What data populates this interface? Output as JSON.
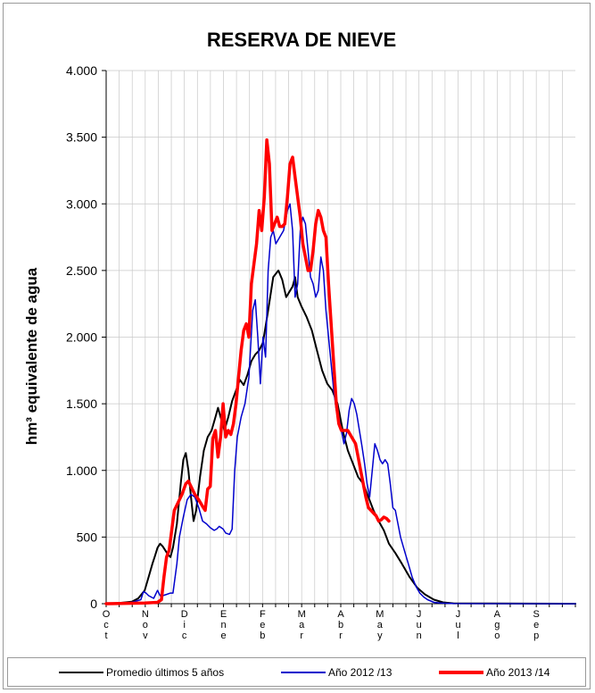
{
  "chart_data": {
    "type": "line",
    "title": "RESERVA DE NIEVE",
    "ylabel": "hm³ equivalente de agua",
    "xlabel": "",
    "ylim": [
      0,
      4000
    ],
    "xlim": [
      0,
      365
    ],
    "y_ticks": [
      0,
      500,
      1000,
      1500,
      2000,
      2500,
      3000,
      3500,
      4000
    ],
    "y_tick_labels": [
      "0",
      "500",
      "1.000",
      "1.500",
      "2.000",
      "2.500",
      "3.000",
      "3.500",
      "4.000"
    ],
    "month_labels": [
      "Oct",
      "Nov",
      "Dic",
      "Ene",
      "Feb",
      "Mar",
      "Abr",
      "May",
      "Jun",
      "Jul",
      "Ago",
      "Sep"
    ],
    "grid": true,
    "legend_position": "bottom",
    "series": [
      {
        "name": "Promedio últimos 5 años",
        "color": "#000000",
        "width": 2,
        "points": [
          [
            0,
            0
          ],
          [
            10,
            5
          ],
          [
            20,
            15
          ],
          [
            25,
            40
          ],
          [
            30,
            100
          ],
          [
            33,
            200
          ],
          [
            36,
            300
          ],
          [
            38,
            360
          ],
          [
            40,
            420
          ],
          [
            42,
            450
          ],
          [
            44,
            430
          ],
          [
            46,
            400
          ],
          [
            48,
            370
          ],
          [
            50,
            350
          ],
          [
            52,
            420
          ],
          [
            55,
            600
          ],
          [
            58,
            900
          ],
          [
            60,
            1080
          ],
          [
            62,
            1130
          ],
          [
            64,
            1000
          ],
          [
            66,
            800
          ],
          [
            68,
            620
          ],
          [
            70,
            700
          ],
          [
            73,
            950
          ],
          [
            76,
            1150
          ],
          [
            79,
            1250
          ],
          [
            82,
            1300
          ],
          [
            85,
            1400
          ],
          [
            87,
            1470
          ],
          [
            89,
            1400
          ],
          [
            92,
            1300
          ],
          [
            95,
            1400
          ],
          [
            98,
            1520
          ],
          [
            101,
            1600
          ],
          [
            104,
            1680
          ],
          [
            107,
            1640
          ],
          [
            110,
            1720
          ],
          [
            113,
            1820
          ],
          [
            116,
            1870
          ],
          [
            119,
            1900
          ],
          [
            122,
            1960
          ],
          [
            126,
            2200
          ],
          [
            130,
            2450
          ],
          [
            134,
            2500
          ],
          [
            137,
            2430
          ],
          [
            140,
            2300
          ],
          [
            145,
            2380
          ],
          [
            147,
            2450
          ],
          [
            149,
            2300
          ],
          [
            152,
            2230
          ],
          [
            156,
            2150
          ],
          [
            160,
            2050
          ],
          [
            164,
            1900
          ],
          [
            168,
            1750
          ],
          [
            172,
            1650
          ],
          [
            176,
            1600
          ],
          [
            180,
            1500
          ],
          [
            184,
            1300
          ],
          [
            188,
            1150
          ],
          [
            192,
            1050
          ],
          [
            196,
            950
          ],
          [
            200,
            900
          ],
          [
            204,
            800
          ],
          [
            208,
            700
          ],
          [
            212,
            620
          ],
          [
            216,
            550
          ],
          [
            220,
            450
          ],
          [
            225,
            380
          ],
          [
            230,
            300
          ],
          [
            236,
            200
          ],
          [
            242,
            120
          ],
          [
            248,
            70
          ],
          [
            255,
            30
          ],
          [
            262,
            10
          ],
          [
            270,
            3
          ],
          [
            365,
            0
          ]
        ]
      },
      {
        "name": "Año 2012 /13",
        "color": "#0000cc",
        "width": 1.5,
        "points": [
          [
            0,
            0
          ],
          [
            20,
            10
          ],
          [
            27,
            30
          ],
          [
            29,
            90
          ],
          [
            31,
            80
          ],
          [
            33,
            60
          ],
          [
            35,
            50
          ],
          [
            37,
            40
          ],
          [
            40,
            100
          ],
          [
            42,
            60
          ],
          [
            44,
            60
          ],
          [
            47,
            70
          ],
          [
            50,
            80
          ],
          [
            52,
            80
          ],
          [
            55,
            300
          ],
          [
            57,
            500
          ],
          [
            60,
            650
          ],
          [
            63,
            780
          ],
          [
            66,
            820
          ],
          [
            69,
            800
          ],
          [
            72,
            720
          ],
          [
            75,
            620
          ],
          [
            78,
            600
          ],
          [
            81,
            570
          ],
          [
            84,
            550
          ],
          [
            86,
            560
          ],
          [
            88,
            580
          ],
          [
            91,
            560
          ],
          [
            93,
            530
          ],
          [
            96,
            520
          ],
          [
            98,
            560
          ],
          [
            100,
            1000
          ],
          [
            102,
            1250
          ],
          [
            105,
            1400
          ],
          [
            108,
            1500
          ],
          [
            111,
            1700
          ],
          [
            114,
            2200
          ],
          [
            116,
            2280
          ],
          [
            118,
            2000
          ],
          [
            120,
            1650
          ],
          [
            122,
            2000
          ],
          [
            124,
            1850
          ],
          [
            126,
            2500
          ],
          [
            128,
            2750
          ],
          [
            130,
            2800
          ],
          [
            132,
            2700
          ],
          [
            135,
            2750
          ],
          [
            138,
            2800
          ],
          [
            141,
            2950
          ],
          [
            143,
            3000
          ],
          [
            145,
            2800
          ],
          [
            147,
            2300
          ],
          [
            149,
            2400
          ],
          [
            151,
            2800
          ],
          [
            153,
            2900
          ],
          [
            155,
            2850
          ],
          [
            157,
            2650
          ],
          [
            159,
            2450
          ],
          [
            161,
            2400
          ],
          [
            163,
            2300
          ],
          [
            165,
            2350
          ],
          [
            167,
            2600
          ],
          [
            169,
            2500
          ],
          [
            171,
            2200
          ],
          [
            173,
            2000
          ],
          [
            175,
            1800
          ],
          [
            177,
            1600
          ],
          [
            179,
            1450
          ],
          [
            181,
            1400
          ],
          [
            183,
            1300
          ],
          [
            185,
            1200
          ],
          [
            187,
            1280
          ],
          [
            189,
            1450
          ],
          [
            191,
            1540
          ],
          [
            193,
            1500
          ],
          [
            195,
            1420
          ],
          [
            197,
            1300
          ],
          [
            199,
            1180
          ],
          [
            201,
            1050
          ],
          [
            203,
            900
          ],
          [
            205,
            800
          ],
          [
            207,
            1000
          ],
          [
            209,
            1200
          ],
          [
            211,
            1150
          ],
          [
            213,
            1080
          ],
          [
            215,
            1050
          ],
          [
            217,
            1080
          ],
          [
            219,
            1050
          ],
          [
            221,
            900
          ],
          [
            223,
            720
          ],
          [
            225,
            700
          ],
          [
            227,
            600
          ],
          [
            229,
            500
          ],
          [
            232,
            400
          ],
          [
            235,
            300
          ],
          [
            238,
            200
          ],
          [
            241,
            130
          ],
          [
            244,
            80
          ],
          [
            247,
            50
          ],
          [
            250,
            30
          ],
          [
            255,
            10
          ],
          [
            260,
            5
          ],
          [
            270,
            2
          ],
          [
            365,
            0
          ]
        ]
      },
      {
        "name": "Año 2013 /14",
        "color": "#ff0000",
        "width": 3.5,
        "points": [
          [
            0,
            0
          ],
          [
            30,
            5
          ],
          [
            40,
            10
          ],
          [
            43,
            30
          ],
          [
            45,
            200
          ],
          [
            47,
            350
          ],
          [
            49,
            400
          ],
          [
            51,
            550
          ],
          [
            53,
            700
          ],
          [
            56,
            760
          ],
          [
            59,
            820
          ],
          [
            62,
            900
          ],
          [
            64,
            920
          ],
          [
            66,
            880
          ],
          [
            69,
            820
          ],
          [
            72,
            780
          ],
          [
            75,
            730
          ],
          [
            77,
            700
          ],
          [
            79,
            860
          ],
          [
            81,
            880
          ],
          [
            83,
            1240
          ],
          [
            85,
            1300
          ],
          [
            87,
            1100
          ],
          [
            89,
            1250
          ],
          [
            91,
            1500
          ],
          [
            93,
            1250
          ],
          [
            95,
            1300
          ],
          [
            97,
            1270
          ],
          [
            99,
            1350
          ],
          [
            101,
            1500
          ],
          [
            103,
            1700
          ],
          [
            105,
            1900
          ],
          [
            107,
            2050
          ],
          [
            109,
            2100
          ],
          [
            111,
            2000
          ],
          [
            113,
            2400
          ],
          [
            115,
            2550
          ],
          [
            117,
            2700
          ],
          [
            119,
            2950
          ],
          [
            121,
            2800
          ],
          [
            123,
            3050
          ],
          [
            125,
            3480
          ],
          [
            127,
            3300
          ],
          [
            129,
            2800
          ],
          [
            131,
            2850
          ],
          [
            133,
            2900
          ],
          [
            135,
            2830
          ],
          [
            137,
            2830
          ],
          [
            139,
            2850
          ],
          [
            141,
            3050
          ],
          [
            143,
            3300
          ],
          [
            145,
            3350
          ],
          [
            147,
            3200
          ],
          [
            149,
            3050
          ],
          [
            151,
            2900
          ],
          [
            153,
            2700
          ],
          [
            155,
            2600
          ],
          [
            157,
            2500
          ],
          [
            159,
            2500
          ],
          [
            161,
            2650
          ],
          [
            163,
            2850
          ],
          [
            165,
            2950
          ],
          [
            167,
            2900
          ],
          [
            169,
            2800
          ],
          [
            171,
            2750
          ],
          [
            173,
            2400
          ],
          [
            175,
            2100
          ],
          [
            177,
            1800
          ],
          [
            179,
            1500
          ],
          [
            181,
            1350
          ],
          [
            183,
            1300
          ],
          [
            185,
            1300
          ],
          [
            188,
            1300
          ],
          [
            191,
            1250
          ],
          [
            194,
            1200
          ],
          [
            196,
            1100
          ],
          [
            198,
            1000
          ],
          [
            200,
            900
          ],
          [
            202,
            800
          ],
          [
            204,
            720
          ],
          [
            206,
            700
          ],
          [
            208,
            680
          ],
          [
            210,
            660
          ],
          [
            212,
            620
          ],
          [
            214,
            630
          ],
          [
            216,
            650
          ],
          [
            218,
            640
          ],
          [
            220,
            620
          ]
        ]
      }
    ]
  }
}
